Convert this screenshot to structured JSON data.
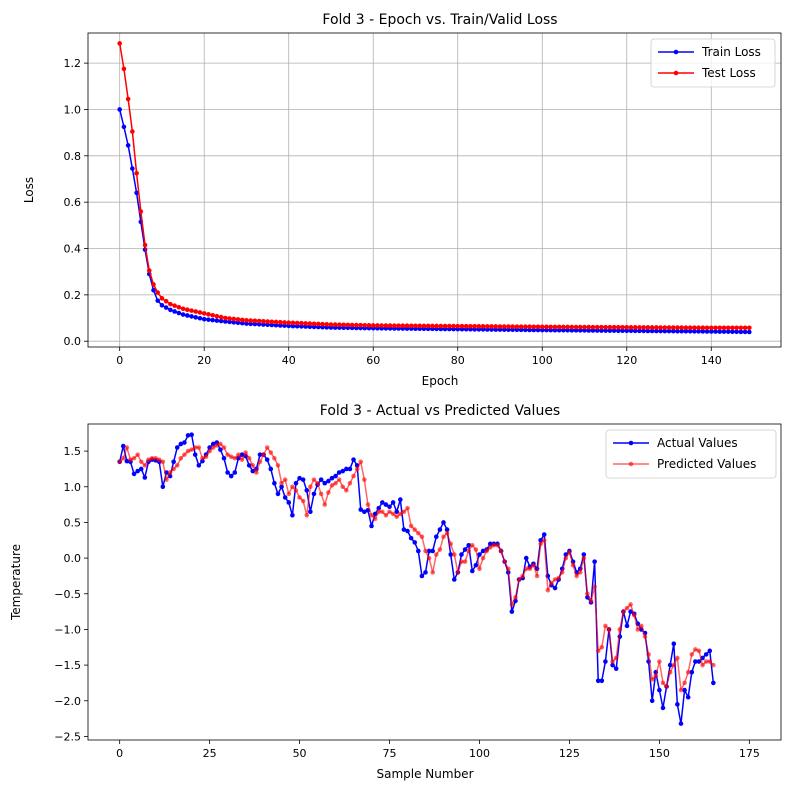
{
  "chart_data": [
    {
      "type": "line",
      "title": "Fold 3 - Epoch vs. Train/Valid Loss",
      "xlabel": "Epoch",
      "ylabel": "Loss",
      "xlim": [
        -7.5,
        156.5
      ],
      "ylim": [
        -0.025,
        1.33
      ],
      "xticks": [
        0,
        20,
        40,
        60,
        80,
        100,
        120,
        140
      ],
      "yticks": [
        0.0,
        0.2,
        0.4,
        0.6,
        0.8,
        1.0,
        1.2
      ],
      "ytick_labels": [
        "0.0",
        "0.2",
        "0.4",
        "0.6",
        "0.8",
        "1.0",
        "1.2"
      ],
      "grid": true,
      "legend_position": "top-right",
      "series": [
        {
          "name": "Train Loss",
          "color": "#0000ff",
          "keypoints": [
            [
              0,
              1.0
            ],
            [
              1,
              0.925
            ],
            [
              2,
              0.845
            ],
            [
              3,
              0.745
            ],
            [
              4,
              0.64
            ],
            [
              5,
              0.515
            ],
            [
              6,
              0.395
            ],
            [
              7,
              0.29
            ],
            [
              8,
              0.22
            ],
            [
              9,
              0.175
            ],
            [
              10,
              0.155
            ],
            [
              12,
              0.135
            ],
            [
              15,
              0.115
            ],
            [
              20,
              0.095
            ],
            [
              25,
              0.085
            ],
            [
              30,
              0.076
            ],
            [
              40,
              0.066
            ],
            [
              50,
              0.059
            ],
            [
              60,
              0.056
            ],
            [
              80,
              0.052
            ],
            [
              100,
              0.048
            ],
            [
              120,
              0.045
            ],
            [
              140,
              0.042
            ],
            [
              149,
              0.04
            ]
          ]
        },
        {
          "name": "Test Loss",
          "color": "#ff0000",
          "keypoints": [
            [
              0,
              1.285
            ],
            [
              1,
              1.175
            ],
            [
              2,
              1.045
            ],
            [
              3,
              0.905
            ],
            [
              4,
              0.725
            ],
            [
              5,
              0.56
            ],
            [
              6,
              0.415
            ],
            [
              7,
              0.305
            ],
            [
              8,
              0.245
            ],
            [
              9,
              0.21
            ],
            [
              10,
              0.185
            ],
            [
              12,
              0.16
            ],
            [
              15,
              0.14
            ],
            [
              20,
              0.12
            ],
            [
              25,
              0.1
            ],
            [
              30,
              0.09
            ],
            [
              40,
              0.08
            ],
            [
              50,
              0.072
            ],
            [
              60,
              0.068
            ],
            [
              80,
              0.065
            ],
            [
              100,
              0.062
            ],
            [
              120,
              0.06
            ],
            [
              140,
              0.058
            ],
            [
              149,
              0.058
            ]
          ]
        }
      ]
    },
    {
      "type": "line",
      "title": "Fold 3 - Actual vs Predicted Values",
      "xlabel": "Sample Number",
      "ylabel": "Temperature",
      "xlim": [
        -8.8,
        183.8
      ],
      "ylim": [
        -2.55,
        1.88
      ],
      "xticks": [
        0,
        25,
        50,
        75,
        100,
        125,
        150,
        175
      ],
      "yticks": [
        -2.5,
        -2.0,
        -1.5,
        -1.0,
        -0.5,
        0.0,
        0.5,
        1.0,
        1.5
      ],
      "ytick_labels": [
        "−2.5",
        "−2.0",
        "−1.5",
        "−1.0",
        "−0.5",
        "0.0",
        "0.5",
        "1.0",
        "1.5"
      ],
      "grid": false,
      "legend_position": "top-right",
      "series": [
        {
          "name": "Actual Values",
          "color": "#0000ff",
          "alpha": 1.0,
          "values": [
            1.35,
            1.57,
            1.36,
            1.35,
            1.18,
            1.22,
            1.25,
            1.13,
            1.35,
            1.38,
            1.37,
            1.35,
            1.0,
            1.2,
            1.15,
            1.35,
            1.55,
            1.6,
            1.62,
            1.72,
            1.73,
            1.45,
            1.3,
            1.36,
            1.45,
            1.55,
            1.6,
            1.62,
            1.52,
            1.4,
            1.2,
            1.15,
            1.2,
            1.4,
            1.45,
            1.43,
            1.3,
            1.22,
            1.25,
            1.45,
            1.45,
            1.38,
            1.25,
            1.05,
            0.9,
            1.0,
            0.85,
            0.78,
            0.6,
            1.05,
            1.12,
            1.1,
            0.95,
            0.65,
            0.9,
            1.03,
            1.1,
            1.05,
            1.08,
            1.12,
            1.15,
            1.2,
            1.22,
            1.25,
            1.25,
            1.38,
            1.3,
            0.68,
            0.65,
            0.67,
            0.45,
            0.62,
            0.7,
            0.78,
            0.75,
            0.72,
            0.78,
            0.65,
            0.82,
            0.4,
            0.38,
            0.28,
            0.22,
            0.1,
            -0.25,
            -0.2,
            0.1,
            0.1,
            0.3,
            0.4,
            0.5,
            0.4,
            0.05,
            -0.3,
            -0.2,
            0.05,
            0.12,
            0.18,
            -0.18,
            -0.1,
            0.05,
            0.1,
            0.12,
            0.2,
            0.2,
            0.2,
            0.1,
            -0.05,
            -0.2,
            -0.75,
            -0.6,
            -0.3,
            -0.28,
            0.0,
            -0.12,
            -0.08,
            -0.15,
            0.25,
            0.33,
            -0.25,
            -0.38,
            -0.42,
            -0.3,
            -0.15,
            0.05,
            0.1,
            -0.05,
            -0.2,
            -0.15,
            0.05,
            -0.55,
            -0.62,
            -0.05,
            -1.72,
            -1.72,
            -1.45,
            -1.0,
            -1.5,
            -1.55,
            -1.1,
            -0.75,
            -0.95,
            -0.75,
            -0.78,
            -0.92,
            -1.0,
            -1.05,
            -1.45,
            -2.0,
            -1.6,
            -1.85,
            -2.1,
            -1.8,
            -1.5,
            -1.2,
            -2.05,
            -2.32,
            -1.85,
            -1.95,
            -1.6,
            -1.45,
            -1.45,
            -1.4,
            -1.35,
            -1.3,
            -1.75
          ]
        },
        {
          "name": "Predicted Values",
          "color": "#ff0000",
          "alpha": 0.6,
          "values": [
            1.35,
            1.4,
            1.55,
            1.38,
            1.4,
            1.45,
            1.35,
            1.3,
            1.38,
            1.4,
            1.4,
            1.38,
            1.35,
            1.1,
            1.2,
            1.25,
            1.3,
            1.4,
            1.45,
            1.5,
            1.52,
            1.55,
            1.55,
            1.4,
            1.42,
            1.5,
            1.55,
            1.58,
            1.6,
            1.55,
            1.45,
            1.42,
            1.4,
            1.45,
            1.38,
            1.48,
            1.4,
            1.3,
            1.2,
            1.35,
            1.45,
            1.55,
            1.48,
            1.4,
            1.3,
            1.05,
            1.1,
            0.9,
            1.0,
            0.95,
            0.85,
            0.8,
            0.6,
            1.0,
            1.1,
            1.05,
            0.9,
            0.75,
            0.92,
            1.02,
            1.05,
            1.1,
            1.0,
            0.95,
            1.05,
            1.15,
            1.25,
            1.35,
            1.1,
            0.75,
            0.6,
            0.55,
            0.65,
            0.65,
            0.6,
            0.65,
            0.62,
            0.58,
            0.62,
            0.65,
            0.7,
            0.45,
            0.4,
            0.35,
            0.3,
            0.1,
            0.0,
            -0.2,
            0.05,
            0.12,
            0.3,
            0.35,
            0.2,
            0.05,
            -0.2,
            -0.05,
            -0.05,
            0.1,
            0.18,
            0.12,
            -0.15,
            0.0,
            0.1,
            0.15,
            0.18,
            0.18,
            0.1,
            -0.05,
            -0.15,
            -0.65,
            -0.55,
            -0.3,
            -0.25,
            -0.15,
            -0.15,
            -0.1,
            -0.25,
            0.2,
            0.25,
            -0.45,
            -0.35,
            -0.3,
            -0.28,
            -0.2,
            0.0,
            0.08,
            -0.1,
            -0.25,
            -0.2,
            0.0,
            -0.5,
            -0.6,
            -0.4,
            -1.3,
            -1.25,
            -0.95,
            -1.0,
            -1.45,
            -1.4,
            -1.0,
            -0.75,
            -0.7,
            -0.65,
            -0.8,
            -1.0,
            -0.95,
            -1.1,
            -1.35,
            -1.7,
            -1.65,
            -1.45,
            -1.75,
            -1.8,
            -1.6,
            -1.5,
            -1.4,
            -1.85,
            -1.75,
            -1.6,
            -1.35,
            -1.28,
            -1.3,
            -1.5,
            -1.45,
            -1.45,
            -1.5
          ]
        }
      ]
    }
  ]
}
